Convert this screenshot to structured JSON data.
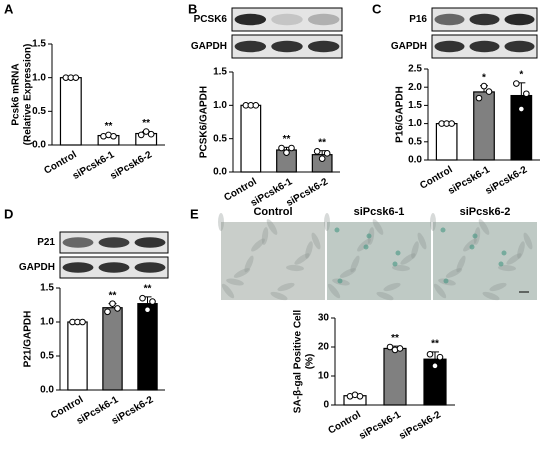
{
  "chart_data": [
    {
      "type": "bar",
      "panel": "A",
      "ylabel": [
        "Pcsk6  mRNA",
        "(Relative Expression)"
      ],
      "categories": [
        "Control",
        "siPcsk6-1",
        "siPcsk6-2"
      ],
      "values": [
        1.0,
        0.14,
        0.17
      ],
      "errors": [
        0.01,
        0.02,
        0.03
      ],
      "points": [
        [
          1.0,
          1.0,
          1.0
        ],
        [
          0.13,
          0.15,
          0.13
        ],
        [
          0.15,
          0.2,
          0.16
        ]
      ],
      "annotations": [
        null,
        "**",
        "**"
      ],
      "colors": [
        "#ffffff",
        "#ffffff",
        "#ffffff"
      ],
      "ylim": [
        0,
        1.5
      ],
      "yticks": [
        {
          "value": 0,
          "label": "0.0"
        },
        {
          "value": 0.5,
          "label": "0.5"
        },
        {
          "value": 1.0,
          "label": "1.0"
        },
        {
          "value": 1.5,
          "label": "1.5"
        }
      ]
    },
    {
      "type": "bar",
      "panel": "B",
      "blot_labels": [
        "PCSK6",
        "GAPDH"
      ],
      "ylabel": [
        "PCSK6/GAPDH"
      ],
      "categories": [
        "Control",
        "siPcsk6-1",
        "siPcsk6-2"
      ],
      "values": [
        1.0,
        0.33,
        0.26
      ],
      "errors": [
        0.01,
        0.04,
        0.06
      ],
      "points": [
        [
          1.0,
          1.0,
          1.0
        ],
        [
          0.36,
          0.29,
          0.36
        ],
        [
          0.31,
          0.2,
          0.28
        ]
      ],
      "annotations": [
        null,
        "**",
        "**"
      ],
      "colors": [
        "#ffffff",
        "#808080",
        "#808080"
      ],
      "ylim": [
        0,
        1.5
      ],
      "yticks": [
        {
          "value": 0,
          "label": "0.0"
        },
        {
          "value": 0.5,
          "label": "0.5"
        },
        {
          "value": 1.0,
          "label": "1.0"
        },
        {
          "value": 1.5,
          "label": "1.5"
        }
      ]
    },
    {
      "type": "bar",
      "panel": "C",
      "blot_labels": [
        "P16",
        "GAPDH"
      ],
      "ylabel": [
        "P16/GAPDH"
      ],
      "categories": [
        "Control",
        "siPcsk6-1",
        "siPcsk6-2"
      ],
      "values": [
        1.0,
        1.87,
        1.77
      ],
      "errors": [
        0.02,
        0.17,
        0.35
      ],
      "points": [
        [
          1.0,
          1.0,
          1.0
        ],
        [
          1.7,
          2.03,
          1.88
        ],
        [
          2.1,
          1.4,
          1.82
        ]
      ],
      "annotations": [
        null,
        "*",
        "*"
      ],
      "colors": [
        "#ffffff",
        "#808080",
        "#000000"
      ],
      "ylim": [
        0,
        2.5
      ],
      "yticks": [
        {
          "value": 0,
          "label": "0.0"
        },
        {
          "value": 0.5,
          "label": "0.5"
        },
        {
          "value": 1.0,
          "label": "1.0"
        },
        {
          "value": 1.5,
          "label": "1.5"
        },
        {
          "value": 2.0,
          "label": "2.0"
        },
        {
          "value": 2.5,
          "label": "2.5"
        }
      ]
    },
    {
      "type": "bar",
      "panel": "D",
      "blot_labels": [
        "P21",
        "GAPDH"
      ],
      "ylabel": [
        "P21/GAPDH"
      ],
      "categories": [
        "Control",
        "siPcsk6-1",
        "siPcsk6-2"
      ],
      "values": [
        1.0,
        1.21,
        1.27
      ],
      "errors": [
        0.01,
        0.06,
        0.1
      ],
      "points": [
        [
          1.0,
          1.0,
          1.0
        ],
        [
          1.15,
          1.27,
          1.2
        ],
        [
          1.35,
          1.18,
          1.3
        ]
      ],
      "annotations": [
        null,
        "**",
        "**"
      ],
      "colors": [
        "#ffffff",
        "#808080",
        "#000000"
      ],
      "ylim": [
        0,
        1.5
      ],
      "yticks": [
        {
          "value": 0,
          "label": "0.0"
        },
        {
          "value": 0.5,
          "label": "0.5"
        },
        {
          "value": 1.0,
          "label": "1.0"
        },
        {
          "value": 1.5,
          "label": "1.5"
        }
      ]
    },
    {
      "type": "bar",
      "panel": "E",
      "image_titles": [
        "Control",
        "siPcsk6-1",
        "siPcsk6-2"
      ],
      "ylabel": [
        "SA-β-gal Positive Cell",
        "(%)"
      ],
      "categories": [
        "Control",
        "siPcsk6-1",
        "siPcsk6-2"
      ],
      "values": [
        3.2,
        19.5,
        15.8
      ],
      "errors": [
        0.4,
        0.8,
        2.5
      ],
      "points": [
        [
          3.0,
          3.5,
          3.0
        ],
        [
          20.0,
          19.0,
          19.5
        ],
        [
          17.5,
          13.5,
          16.5
        ]
      ],
      "annotations": [
        null,
        "**",
        "**"
      ],
      "colors": [
        "#ffffff",
        "#808080",
        "#000000"
      ],
      "ylim": [
        0,
        30
      ],
      "yticks": [
        0,
        10,
        20,
        30
      ]
    }
  ]
}
